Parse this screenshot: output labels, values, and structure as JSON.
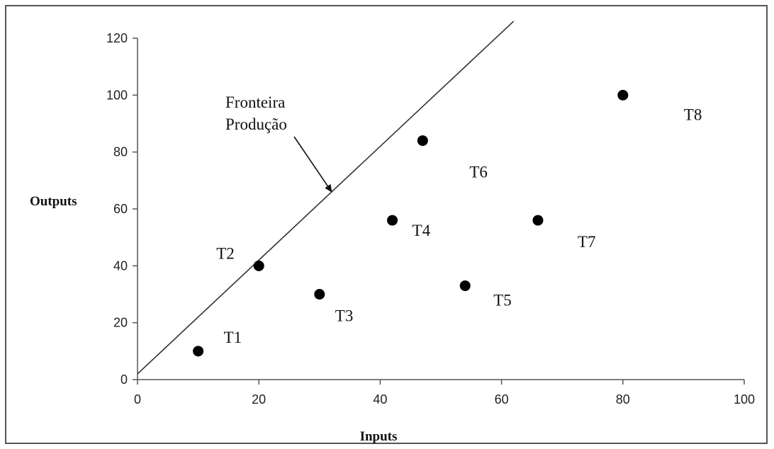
{
  "chart_data": {
    "type": "scatter",
    "xlabel": "Inputs",
    "ylabel": "Outputs",
    "xlim": [
      0,
      100
    ],
    "ylim": [
      0,
      120
    ],
    "xticks": [
      0,
      20,
      40,
      60,
      80,
      100
    ],
    "yticks": [
      0,
      20,
      40,
      60,
      80,
      100,
      120
    ],
    "grid": false,
    "points": [
      {
        "label": "T1",
        "x": 10,
        "y": 10
      },
      {
        "label": "T2",
        "x": 20,
        "y": 40
      },
      {
        "label": "T3",
        "x": 30,
        "y": 30
      },
      {
        "label": "T4",
        "x": 42,
        "y": 56
      },
      {
        "label": "T5",
        "x": 54,
        "y": 33
      },
      {
        "label": "T6",
        "x": 47,
        "y": 84
      },
      {
        "label": "T7",
        "x": 66,
        "y": 56
      },
      {
        "label": "T8",
        "x": 80,
        "y": 100
      }
    ],
    "frontier": {
      "from": {
        "x": 0,
        "y": 2
      },
      "to": {
        "x": 62,
        "y": 126
      }
    },
    "annotation": {
      "line1": "Fronteira",
      "line2": "Produção",
      "points_to": {
        "x": 32,
        "y": 66
      }
    }
  }
}
